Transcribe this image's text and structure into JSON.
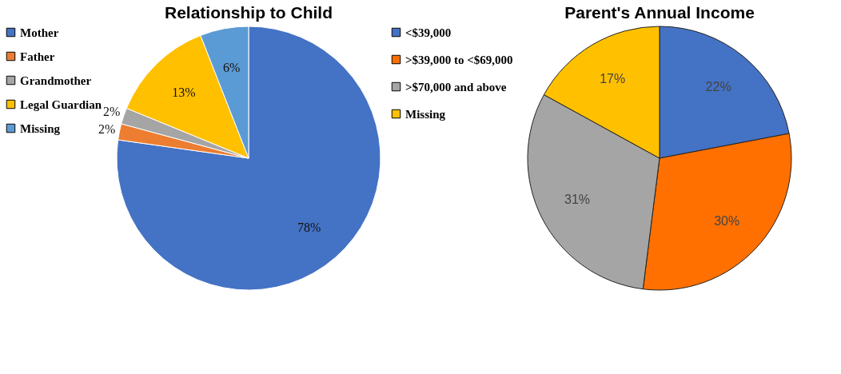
{
  "chart_data": [
    {
      "type": "pie",
      "title": "Relationship to Child",
      "categories": [
        "Mother",
        "Father",
        "Grandmother",
        "Legal Guardian",
        "Missing"
      ],
      "values": [
        78,
        2,
        2,
        13,
        6
      ],
      "colors": [
        "#4472c4",
        "#ed7d31",
        "#a5a5a5",
        "#ffc000",
        "#5b9bd5"
      ],
      "value_labels": [
        "78%",
        "2%",
        "2%",
        "13%",
        "6%"
      ],
      "legend": "left"
    },
    {
      "type": "pie",
      "title": "Parent's Annual Income",
      "categories": [
        "<$39,000",
        ">$39,000 to <$69,000",
        ">$70,000 and above",
        "Missing"
      ],
      "values": [
        22,
        30,
        31,
        17
      ],
      "colors": [
        "#4472c4",
        "#ff7000",
        "#a5a5a5",
        "#ffc000"
      ],
      "value_labels": [
        "22%",
        "30%",
        "31%",
        "17%"
      ],
      "legend": "left"
    }
  ]
}
